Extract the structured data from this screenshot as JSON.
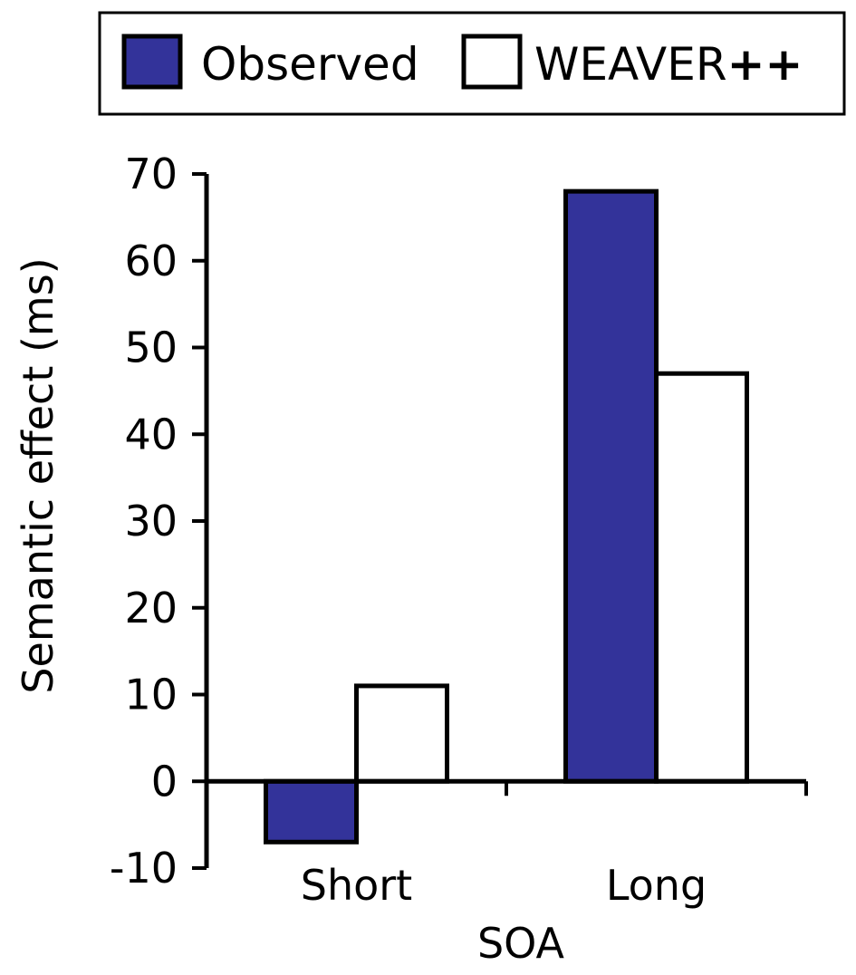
{
  "chart_data": {
    "type": "bar",
    "categories": [
      "Short",
      "Long"
    ],
    "series": [
      {
        "name": "Observed",
        "values": [
          -7,
          68
        ],
        "color": "#33339a"
      },
      {
        "name": "WEAVER++",
        "values": [
          11,
          47
        ],
        "color": "#ffffff"
      }
    ],
    "title": "",
    "xlabel": "SOA",
    "ylabel": "Semantic effect (ms)",
    "ylim": [
      -10,
      70
    ],
    "yticks": [
      -10,
      0,
      10,
      20,
      30,
      40,
      50,
      60,
      70
    ],
    "grid": false,
    "legend": {
      "position": "top",
      "items": [
        {
          "label": "Observed",
          "suffix": ""
        },
        {
          "label": "WEAVER",
          "suffix": "++"
        }
      ]
    }
  }
}
